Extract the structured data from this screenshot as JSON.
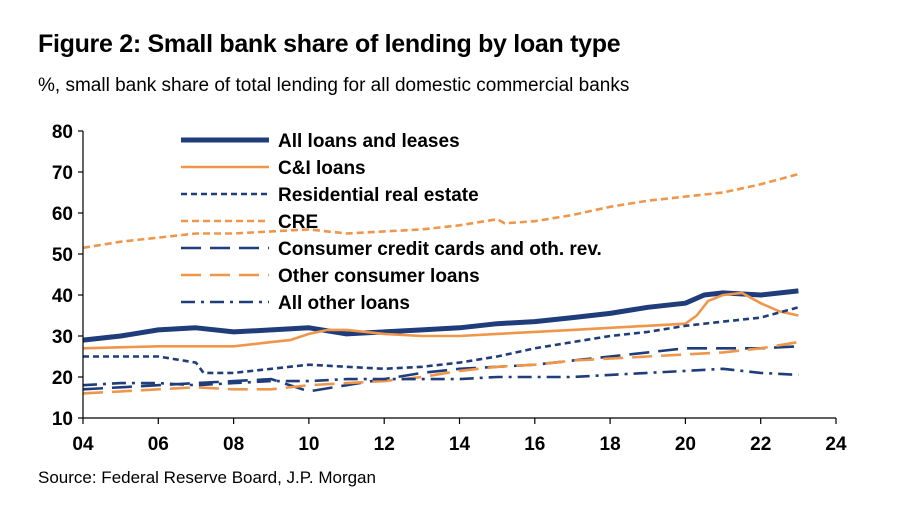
{
  "title": "Figure 2: Small bank share of lending by loan type",
  "subtitle": "%, small bank share of total lending for all domestic commercial banks",
  "source": "Source: Federal Reserve Board, J.P. Morgan",
  "colors": {
    "navy": "#1f3d7a",
    "orange": "#f0964a"
  },
  "chart_data": {
    "type": "line",
    "xlim": [
      4,
      24
    ],
    "ylim": [
      10,
      80
    ],
    "x_ticks": [
      4,
      6,
      8,
      10,
      12,
      14,
      16,
      18,
      20,
      22,
      24
    ],
    "x_tick_labels": [
      "04",
      "06",
      "08",
      "10",
      "12",
      "14",
      "16",
      "18",
      "20",
      "22",
      "24"
    ],
    "y_ticks": [
      10,
      20,
      30,
      40,
      50,
      60,
      70,
      80
    ],
    "y_tick_labels": [
      "10",
      "20",
      "30",
      "40",
      "50",
      "60",
      "70",
      "80"
    ],
    "legend_position": "top-left",
    "grid": false,
    "series": [
      {
        "name": "All loans and leases",
        "color": "#1f3d7a",
        "style": "thick-solid",
        "points": [
          [
            4,
            29
          ],
          [
            5,
            30
          ],
          [
            6,
            31.5
          ],
          [
            7,
            32
          ],
          [
            8,
            31
          ],
          [
            9,
            31.5
          ],
          [
            10,
            32
          ],
          [
            11,
            30.5
          ],
          [
            12,
            31
          ],
          [
            13,
            31.5
          ],
          [
            14,
            32
          ],
          [
            15,
            33
          ],
          [
            16,
            33.5
          ],
          [
            17,
            34.5
          ],
          [
            18,
            35.5
          ],
          [
            19,
            37
          ],
          [
            20,
            38
          ],
          [
            20.5,
            40
          ],
          [
            21,
            40.5
          ],
          [
            22,
            40
          ],
          [
            23,
            41
          ]
        ]
      },
      {
        "name": "C&I loans",
        "color": "#f0964a",
        "style": "solid",
        "points": [
          [
            4,
            27
          ],
          [
            6,
            27.5
          ],
          [
            8,
            27.5
          ],
          [
            9,
            28.5
          ],
          [
            9.5,
            29
          ],
          [
            10,
            30.5
          ],
          [
            10.5,
            31.5
          ],
          [
            11,
            31.5
          ],
          [
            12,
            30.5
          ],
          [
            13,
            30
          ],
          [
            14,
            30
          ],
          [
            15,
            30.5
          ],
          [
            16,
            31
          ],
          [
            17,
            31.5
          ],
          [
            18,
            32
          ],
          [
            19,
            32.5
          ],
          [
            20,
            33
          ],
          [
            20.3,
            35
          ],
          [
            20.6,
            38.5
          ],
          [
            21,
            40
          ],
          [
            21.5,
            40.5
          ],
          [
            22,
            38
          ],
          [
            22.5,
            36
          ],
          [
            23,
            35
          ]
        ]
      },
      {
        "name": "Residential real estate",
        "color": "#1f3d7a",
        "style": "short-dash",
        "points": [
          [
            4,
            25
          ],
          [
            5,
            25
          ],
          [
            6,
            25
          ],
          [
            7,
            23.5
          ],
          [
            7.2,
            21
          ],
          [
            8,
            21
          ],
          [
            9,
            22
          ],
          [
            10,
            23
          ],
          [
            11,
            22.5
          ],
          [
            12,
            22
          ],
          [
            13,
            22.5
          ],
          [
            14,
            23.5
          ],
          [
            15,
            25
          ],
          [
            16,
            27
          ],
          [
            17,
            28.5
          ],
          [
            18,
            30
          ],
          [
            19,
            31
          ],
          [
            20,
            32.5
          ],
          [
            21,
            33.5
          ],
          [
            22,
            34.5
          ],
          [
            23,
            37
          ]
        ]
      },
      {
        "name": "CRE",
        "color": "#f0964a",
        "style": "dash",
        "points": [
          [
            4,
            51.5
          ],
          [
            5,
            53
          ],
          [
            6,
            54
          ],
          [
            7,
            55
          ],
          [
            8,
            55
          ],
          [
            9,
            55.5
          ],
          [
            10,
            56
          ],
          [
            11,
            55
          ],
          [
            12,
            55.5
          ],
          [
            13,
            56
          ],
          [
            14,
            57
          ],
          [
            15,
            58.5
          ],
          [
            15.2,
            57.5
          ],
          [
            16,
            58
          ],
          [
            17,
            59.5
          ],
          [
            18,
            61.5
          ],
          [
            19,
            63
          ],
          [
            20,
            64
          ],
          [
            21,
            65
          ],
          [
            22,
            67
          ],
          [
            23,
            69.5
          ]
        ]
      },
      {
        "name": "Consumer credit cards and oth. rev.",
        "color": "#1f3d7a",
        "style": "long-dash",
        "points": [
          [
            4,
            17
          ],
          [
            5,
            17.5
          ],
          [
            6,
            18
          ],
          [
            7,
            18.5
          ],
          [
            8,
            19
          ],
          [
            9,
            19.5
          ],
          [
            10,
            16.5
          ],
          [
            11,
            18
          ],
          [
            12,
            19.5
          ],
          [
            13,
            21
          ],
          [
            14,
            22
          ],
          [
            15,
            22.5
          ],
          [
            16,
            23
          ],
          [
            17,
            24
          ],
          [
            18,
            25
          ],
          [
            19,
            26
          ],
          [
            20,
            27
          ],
          [
            21,
            27
          ],
          [
            22,
            27
          ],
          [
            23,
            27.5
          ]
        ]
      },
      {
        "name": "Other consumer loans",
        "color": "#f0964a",
        "style": "long-dash",
        "points": [
          [
            4,
            16
          ],
          [
            5,
            16.5
          ],
          [
            6,
            17
          ],
          [
            7,
            17.5
          ],
          [
            8,
            17
          ],
          [
            9,
            17
          ],
          [
            10,
            18
          ],
          [
            11,
            18.5
          ],
          [
            12,
            19
          ],
          [
            13,
            20
          ],
          [
            14,
            21.5
          ],
          [
            15,
            22.5
          ],
          [
            16,
            23
          ],
          [
            17,
            24
          ],
          [
            18,
            24.5
          ],
          [
            19,
            25
          ],
          [
            20,
            25.5
          ],
          [
            21,
            26
          ],
          [
            22,
            27
          ],
          [
            23,
            28.5
          ]
        ]
      },
      {
        "name": "All other loans",
        "color": "#1f3d7a",
        "style": "dash-dot",
        "points": [
          [
            4,
            18
          ],
          [
            5,
            18.5
          ],
          [
            6,
            18.5
          ],
          [
            7,
            18
          ],
          [
            8,
            18.5
          ],
          [
            9,
            19
          ],
          [
            10,
            19
          ],
          [
            11,
            19.5
          ],
          [
            12,
            19.5
          ],
          [
            13,
            19.5
          ],
          [
            14,
            19.5
          ],
          [
            15,
            20
          ],
          [
            16,
            20
          ],
          [
            17,
            20
          ],
          [
            18,
            20.5
          ],
          [
            19,
            21
          ],
          [
            20,
            21.5
          ],
          [
            21,
            22
          ],
          [
            22,
            21
          ],
          [
            23,
            20.5
          ]
        ]
      }
    ]
  }
}
